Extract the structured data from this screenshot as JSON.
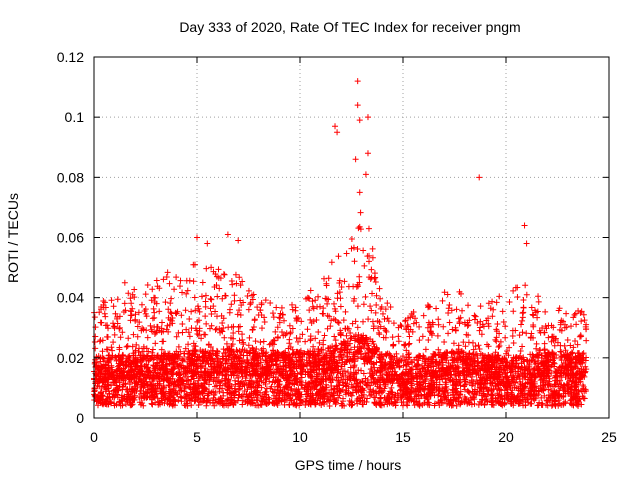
{
  "chart_data": {
    "type": "scatter",
    "title": "Day 333 of 2020, Rate Of TEC Index for receiver pngm",
    "xlabel": "GPS time / hours",
    "ylabel": "ROTI / TECUs",
    "xlim": [
      0,
      25
    ],
    "ylim": [
      0,
      0.12
    ],
    "xticks": [
      0,
      5,
      10,
      15,
      20,
      25
    ],
    "yticks": [
      0,
      0.02,
      0.04,
      0.06,
      0.08,
      0.1,
      0.12
    ],
    "xtick_labels": [
      "0",
      "5",
      "10",
      "15",
      "20",
      "25"
    ],
    "ytick_labels": [
      "0",
      "0.02",
      "0.04",
      "0.06",
      "0.08",
      "0.1",
      "0.12"
    ],
    "grid": true,
    "marker": "+",
    "color": "#ff0000",
    "series": [
      {
        "name": "ROTI",
        "points_count": "dense (~8000)",
        "notable_points": [
          {
            "x": 11.7,
            "y": 0.097
          },
          {
            "x": 11.8,
            "y": 0.095
          },
          {
            "x": 12.8,
            "y": 0.112
          },
          {
            "x": 12.8,
            "y": 0.104
          },
          {
            "x": 12.9,
            "y": 0.099
          },
          {
            "x": 13.3,
            "y": 0.1
          },
          {
            "x": 13.3,
            "y": 0.088
          },
          {
            "x": 13.2,
            "y": 0.081
          },
          {
            "x": 12.7,
            "y": 0.086
          },
          {
            "x": 12.9,
            "y": 0.075
          },
          {
            "x": 18.7,
            "y": 0.08
          },
          {
            "x": 20.9,
            "y": 0.064
          },
          {
            "x": 21.0,
            "y": 0.058
          },
          {
            "x": 6.5,
            "y": 0.061
          },
          {
            "x": 5.0,
            "y": 0.06
          },
          {
            "x": 5.5,
            "y": 0.058
          },
          {
            "x": 7.0,
            "y": 0.059
          }
        ],
        "envelope": [
          {
            "x": 0.0,
            "base": 0.012,
            "top": 0.036
          },
          {
            "x": 1.0,
            "base": 0.013,
            "top": 0.043
          },
          {
            "x": 2.0,
            "base": 0.013,
            "top": 0.047
          },
          {
            "x": 3.0,
            "base": 0.013,
            "top": 0.047
          },
          {
            "x": 4.0,
            "base": 0.014,
            "top": 0.05
          },
          {
            "x": 5.0,
            "base": 0.015,
            "top": 0.052
          },
          {
            "x": 6.0,
            "base": 0.015,
            "top": 0.05
          },
          {
            "x": 7.0,
            "base": 0.015,
            "top": 0.048
          },
          {
            "x": 8.0,
            "base": 0.014,
            "top": 0.04
          },
          {
            "x": 9.0,
            "base": 0.014,
            "top": 0.038
          },
          {
            "x": 10.0,
            "base": 0.014,
            "top": 0.04
          },
          {
            "x": 11.0,
            "base": 0.015,
            "top": 0.048
          },
          {
            "x": 12.0,
            "base": 0.017,
            "top": 0.055
          },
          {
            "x": 12.8,
            "base": 0.02,
            "top": 0.07
          },
          {
            "x": 13.5,
            "base": 0.018,
            "top": 0.062
          },
          {
            "x": 14.0,
            "base": 0.014,
            "top": 0.04
          },
          {
            "x": 15.0,
            "base": 0.012,
            "top": 0.033
          },
          {
            "x": 16.0,
            "base": 0.013,
            "top": 0.038
          },
          {
            "x": 17.0,
            "base": 0.014,
            "top": 0.042
          },
          {
            "x": 18.0,
            "base": 0.014,
            "top": 0.042
          },
          {
            "x": 19.0,
            "base": 0.013,
            "top": 0.038
          },
          {
            "x": 20.0,
            "base": 0.012,
            "top": 0.042
          },
          {
            "x": 21.0,
            "base": 0.013,
            "top": 0.046
          },
          {
            "x": 22.0,
            "base": 0.014,
            "top": 0.038
          },
          {
            "x": 23.0,
            "base": 0.014,
            "top": 0.036
          },
          {
            "x": 23.9,
            "base": 0.014,
            "top": 0.036
          }
        ]
      }
    ]
  }
}
